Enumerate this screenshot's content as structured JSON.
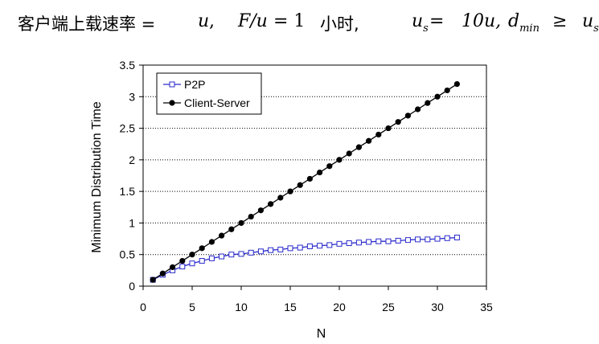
{
  "header": {
    "lead": "客户端上载速率 = ",
    "u_sym": "u",
    "comma1": ",",
    "f_over_u": "F/u",
    "eq_one": " = 1 ",
    "hour": "小时,",
    "us_base": "u",
    "us_sub": "s",
    "us_eq": " = ",
    "ten_u": "10u,",
    "dmin_base": "d",
    "dmin_sub": "min",
    "geq": " ≥ ",
    "us2_base": "u",
    "us2_sub": "s"
  },
  "chart_data": {
    "type": "line",
    "xlabel": "N",
    "ylabel": "Minimum Distribution Time",
    "xlim": [
      0,
      35
    ],
    "ylim": [
      0,
      3.5
    ],
    "xticks": [
      "0",
      "5",
      "10",
      "15",
      "20",
      "25",
      "30",
      "35"
    ],
    "yticks": [
      "0",
      "0.5",
      "1",
      "1.5",
      "2",
      "2.5",
      "3",
      "3.5"
    ],
    "grid": "horizontal dotted",
    "legend_position": "top-left",
    "x": [
      1,
      2,
      3,
      4,
      5,
      6,
      7,
      8,
      9,
      10,
      11,
      12,
      13,
      14,
      15,
      16,
      17,
      18,
      19,
      20,
      21,
      22,
      23,
      24,
      25,
      26,
      27,
      28,
      29,
      30,
      31,
      32
    ],
    "series": [
      {
        "name": "P2P",
        "marker": "open-square",
        "color": "#2a2acc",
        "values": [
          0.1,
          0.18,
          0.25,
          0.31,
          0.36,
          0.4,
          0.44,
          0.47,
          0.5,
          0.51,
          0.53,
          0.55,
          0.57,
          0.58,
          0.6,
          0.61,
          0.63,
          0.64,
          0.65,
          0.67,
          0.68,
          0.69,
          0.7,
          0.71,
          0.71,
          0.72,
          0.73,
          0.74,
          0.74,
          0.75,
          0.76,
          0.77
        ]
      },
      {
        "name": "Client-Server",
        "marker": "filled-circle",
        "color": "#000000",
        "values": [
          0.1,
          0.2,
          0.3,
          0.4,
          0.5,
          0.6,
          0.7,
          0.8,
          0.9,
          1.0,
          1.1,
          1.2,
          1.3,
          1.4,
          1.5,
          1.6,
          1.7,
          1.8,
          1.9,
          2.0,
          2.1,
          2.2,
          2.3,
          2.4,
          2.5,
          2.6,
          2.7,
          2.8,
          2.9,
          3.0,
          3.1,
          3.2
        ]
      }
    ]
  }
}
